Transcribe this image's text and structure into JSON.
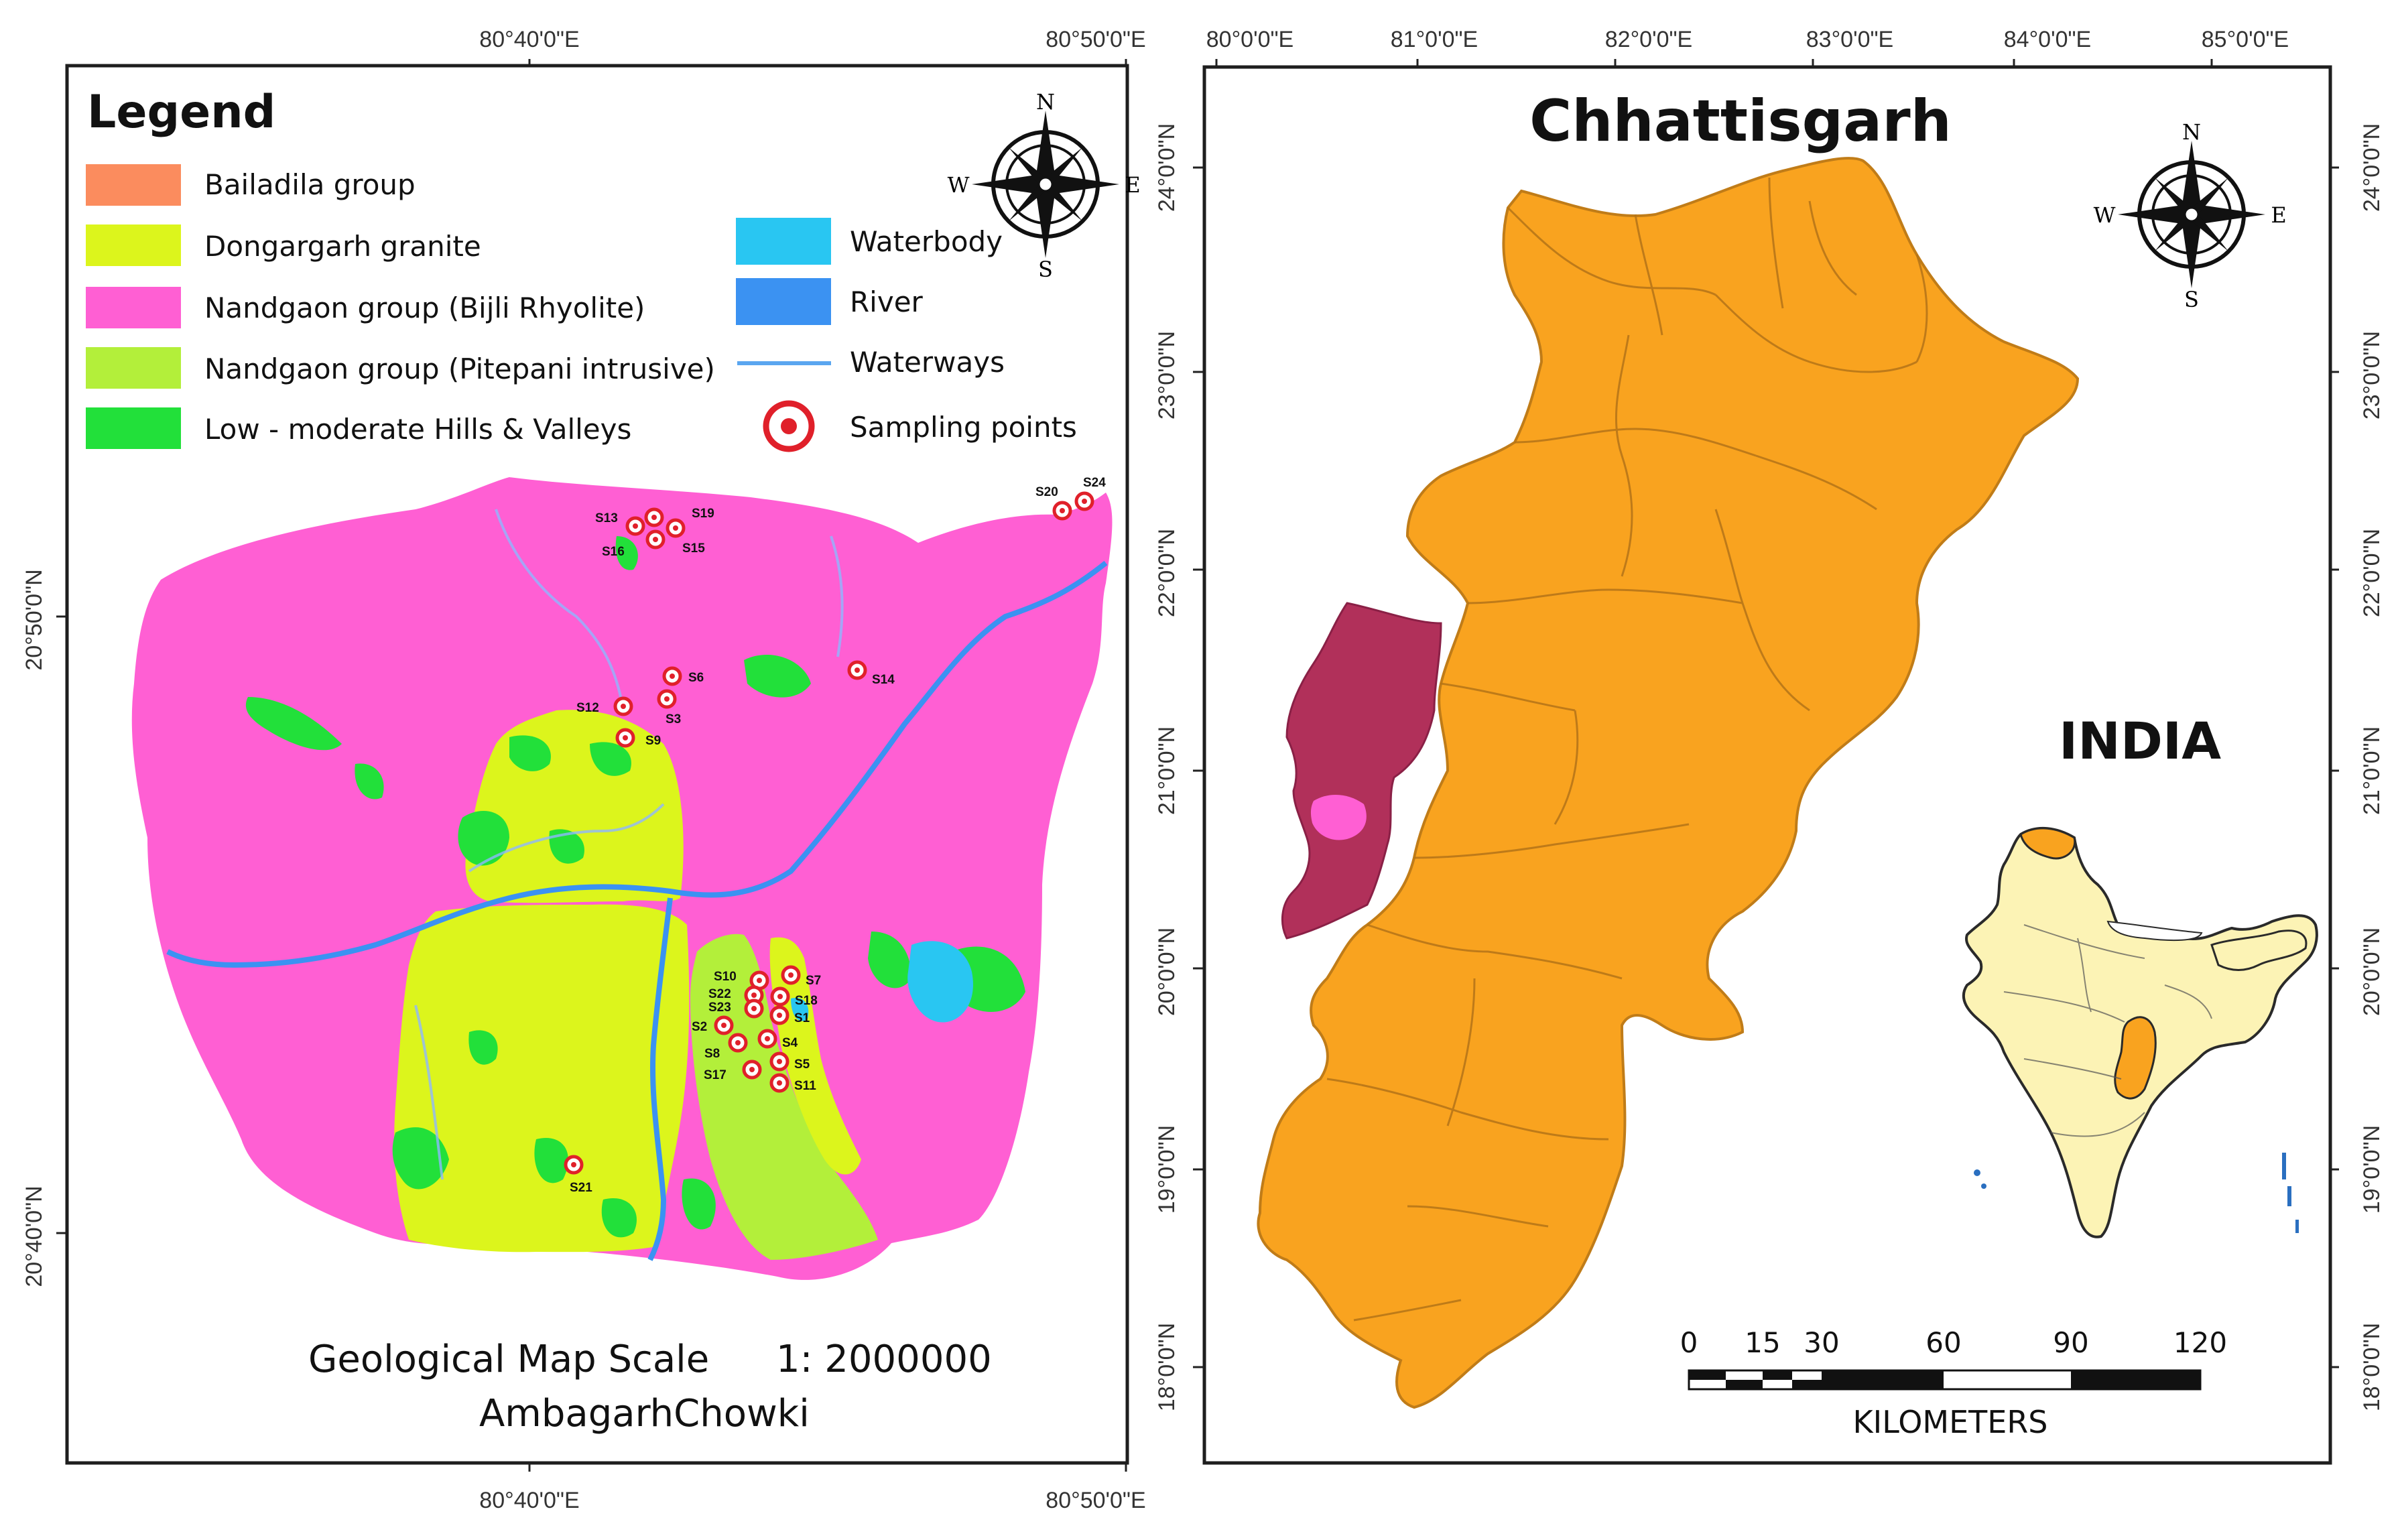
{
  "left_map": {
    "coords": {
      "top": [
        "80°40'0\"E",
        "80°50'0\"E"
      ],
      "bottom": [
        "80°40'0\"E",
        "80°50'0\"E"
      ],
      "left": [
        "20°50'0\"N",
        "20°40'0\"N"
      ]
    },
    "legend": {
      "title": "Legend",
      "items": [
        {
          "label": "Bailadila group",
          "color": "#fb8c5e"
        },
        {
          "label": "Dongargarh granite",
          "color": "#dcf51c"
        },
        {
          "label": "Nandgaon group (Bijli Rhyolite)",
          "color": "#ff5fd3"
        },
        {
          "label": "Nandgaon group (Pitepani intrusive)",
          "color": "#b3ef3a"
        },
        {
          "label": "Low - moderate Hills & Valleys",
          "color": "#22e03a"
        }
      ],
      "items_right": [
        {
          "label": "Waterbody",
          "color": "#29c6f2"
        },
        {
          "label": "River",
          "color": "#3b92f2"
        },
        {
          "label": "Waterways",
          "color": "#5aa6f0"
        },
        {
          "label": "Sampling points",
          "color": "#e0202a"
        }
      ]
    },
    "compass": {
      "n": "N",
      "s": "S",
      "e": "E",
      "w": "W"
    },
    "sampling_points": [
      "S13",
      "S16",
      "S19",
      "S15",
      "S20",
      "S24",
      "S6",
      "S3",
      "S12",
      "S9",
      "S14",
      "S10",
      "S7",
      "S22",
      "S23",
      "S18",
      "S1",
      "S2",
      "S8",
      "S4",
      "S17",
      "S5",
      "S11",
      "S21"
    ],
    "caption": {
      "line1": "Geological Map Scale",
      "scale": "1: 2000000",
      "line2": "AmbagarhChowki"
    }
  },
  "right_map": {
    "title": "Chhattisgarh",
    "coords": {
      "top": [
        "80°0'0\"E",
        "81°0'0\"E",
        "82°0'0\"E",
        "83°0'0\"E",
        "84°0'0\"E",
        "85°0'0\"E"
      ],
      "left": [
        "24°0'0\"N",
        "23°0'0\"N",
        "22°0'0\"N",
        "21°0'0\"N",
        "20°0'0\"N",
        "19°0'0\"N",
        "18°0'0\"N"
      ],
      "right": [
        "24°0'0\"N",
        "23°0'0\"N",
        "22°0'0\"N",
        "21°0'0\"N",
        "20°0'0\"N",
        "19°0'0\"N",
        "18°0'0\"N"
      ]
    },
    "compass": {
      "n": "N",
      "s": "S",
      "e": "E",
      "w": "W"
    },
    "inset_label": "INDIA",
    "scalebar": {
      "ticks": [
        "0",
        "15",
        "30",
        "60",
        "90",
        "120"
      ],
      "unit": "KILOMETERS"
    },
    "colors": {
      "state": "#f9a31f",
      "district_highlight": "#b1305a",
      "study_area": "#ff5fd3",
      "india_fill": "#fcf3b5"
    }
  }
}
